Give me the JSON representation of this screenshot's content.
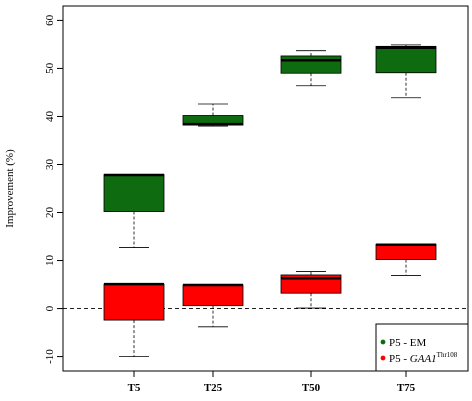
{
  "chart_data": {
    "type": "box",
    "ylabel": "Improvement (%)",
    "ylim": [
      -13,
      63
    ],
    "yticks": [
      -10,
      0,
      10,
      20,
      30,
      40,
      50,
      60
    ],
    "reference_line": 0,
    "categories": [
      "T5",
      "T25",
      "T50",
      "T75"
    ],
    "series": [
      {
        "name": "P5 - EM",
        "color": "#0f6b0f",
        "boxes": [
          {
            "min": 12.7,
            "q1": 20.2,
            "median": 27.8,
            "q3": 27.9,
            "max": 27.9
          },
          {
            "min": 38.0,
            "q1": 38.2,
            "median": 38.4,
            "q3": 40.2,
            "max": 42.6
          },
          {
            "min": 46.4,
            "q1": 49.0,
            "median": 51.7,
            "q3": 52.6,
            "max": 53.7
          },
          {
            "min": 43.9,
            "q1": 49.1,
            "median": 54.3,
            "q3": 54.6,
            "max": 54.9
          }
        ]
      },
      {
        "name": "P5 - GAA1 Thr108",
        "label_prefix": "P5 - ",
        "label_gene": "GAA1",
        "label_sup": "Thr108",
        "color": "#ff0000",
        "boxes": [
          {
            "min": -10.0,
            "q1": -2.4,
            "median": 5.1,
            "q3": 5.1,
            "max": 5.1
          },
          {
            "min": -3.8,
            "q1": 0.6,
            "median": 4.9,
            "q3": 4.9,
            "max": 4.9
          },
          {
            "min": 0.1,
            "q1": 3.2,
            "median": 6.3,
            "q3": 7.0,
            "max": 7.7
          },
          {
            "min": 6.9,
            "q1": 10.2,
            "median": 13.3,
            "q3": 13.4,
            "max": 13.4
          }
        ]
      }
    ],
    "legend_position": "bottom-right"
  }
}
